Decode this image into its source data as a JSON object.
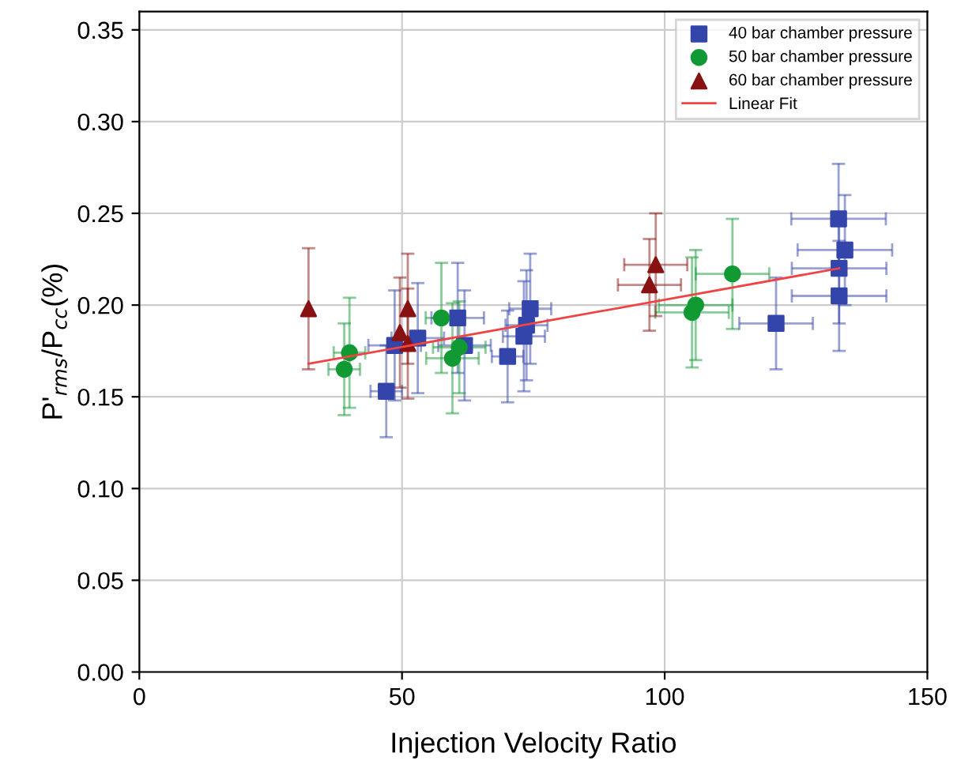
{
  "chart_data": {
    "type": "scatter",
    "xlabel": "Injection Velocity Ratio",
    "ylabel": "P'$_{rms}$/P$_{cc}$(%)",
    "xlim": [
      0,
      150
    ],
    "ylim": [
      0,
      0.36
    ],
    "xticks": [
      0,
      50,
      100,
      150
    ],
    "yticks": [
      {
        "value": 0,
        "label": "0.00"
      },
      {
        "value": 0.05,
        "label": "0.05"
      },
      {
        "value": 0.1,
        "label": "0.10"
      },
      {
        "value": 0.15,
        "label": "0.15"
      },
      {
        "value": 0.2,
        "label": "0.20"
      },
      {
        "value": 0.25,
        "label": "0.25"
      },
      {
        "value": 0.3,
        "label": "0.30"
      },
      {
        "value": 0.35,
        "label": "0.35"
      }
    ],
    "grid": true,
    "legend": "top right",
    "series": [
      {
        "name": "40 bar chamber pressure",
        "color": "#3344aa",
        "marker": "square",
        "x": [
          47,
          48.6,
          53,
          60.6,
          61.9,
          70.1,
          73.2,
          73.7,
          74.4,
          121.2,
          133.1,
          134.3,
          133.2,
          133.2
        ],
        "values": [
          0.153,
          0.178,
          0.182,
          0.193,
          0.178,
          0.172,
          0.183,
          0.189,
          0.198,
          0.19,
          0.247,
          0.23,
          0.22,
          0.205
        ],
        "errors": [
          0.025,
          0.03,
          0.03,
          0.03,
          0.03,
          0.025,
          0.03,
          0.03,
          0.03,
          0.025,
          0.03,
          0.03,
          0.03,
          0.03
        ],
        "xerrors": [
          3,
          5,
          5,
          5,
          5,
          3,
          4,
          4,
          4,
          7,
          9,
          9,
          9,
          9
        ]
      },
      {
        "name": "50 bar chamber pressure",
        "color": "#119933",
        "marker": "circle",
        "x": [
          39,
          40,
          57.5,
          59.6,
          60.9,
          105.2,
          105.9,
          112.9
        ],
        "values": [
          0.165,
          0.174,
          0.193,
          0.171,
          0.177,
          0.196,
          0.2,
          0.217
        ],
        "errors": [
          0.025,
          0.03,
          0.03,
          0.03,
          0.025,
          0.03,
          0.03,
          0.03
        ],
        "xerrors": [
          3,
          3,
          3,
          5,
          5,
          7,
          7,
          7
        ]
      },
      {
        "name": "60 bar chamber pressure",
        "color": "#881111",
        "marker": "triangle",
        "x": [
          32.2,
          51.1,
          49.6,
          51.1,
          98.3,
          97.1
        ],
        "values": [
          0.198,
          0.198,
          0.185,
          0.179,
          0.222,
          0.211
        ],
        "errors": [
          0.033,
          0.03,
          0.03,
          0.03,
          0.028,
          0.025
        ],
        "xerrors": [
          null,
          null,
          null,
          null,
          6,
          6
        ]
      },
      {
        "name": "Linear Fit",
        "type": "line",
        "color": "#ee4444",
        "marker": "none",
        "x": [
          32.2,
          133.2
        ],
        "values": [
          0.168,
          0.22
        ]
      }
    ]
  }
}
